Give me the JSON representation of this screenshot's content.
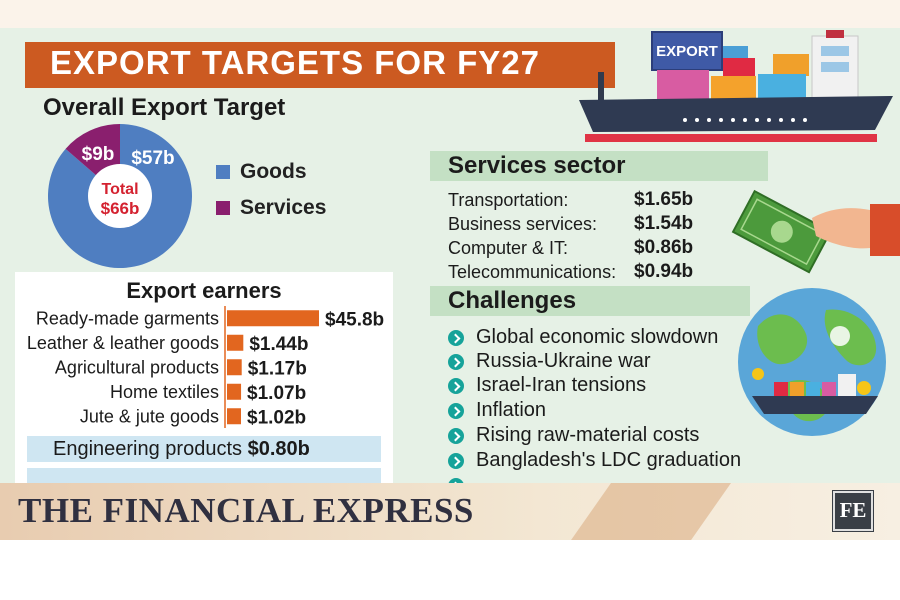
{
  "title": "EXPORT TARGETS FOR FY27",
  "ship_label": "EXPORT",
  "overall": {
    "heading": "Overall Export Target",
    "total_label": "Total",
    "total_value": "$66b",
    "goods_label": "$57b",
    "services_label": "$9b",
    "legend": [
      {
        "label": "Goods",
        "color": "#4f7ec1"
      },
      {
        "label": "Services",
        "color": "#8a1f6e"
      }
    ]
  },
  "services_sector": {
    "heading": "Services sector",
    "items": [
      {
        "name": "Transportation:",
        "value": "$1.65b"
      },
      {
        "name": "Business services:",
        "value": "$1.54b"
      },
      {
        "name": "Computer & IT:",
        "value": "$0.86b"
      },
      {
        "name": "Telecommunications:",
        "value": "$0.94b"
      }
    ]
  },
  "challenges": {
    "heading": "Challenges",
    "items": [
      "Global economic slowdown",
      "Russia-Ukraine war",
      "Israel-Iran tensions",
      "Inflation",
      "Rising raw-material costs",
      "Bangladesh's LDC graduation"
    ]
  },
  "earners": {
    "heading": "Export earners",
    "highlights": [
      {
        "name": "Engineering products",
        "value": "$0.80b"
      }
    ]
  },
  "chart_data": [
    {
      "type": "pie",
      "categories": [
        "Goods",
        "Services"
      ],
      "values": [
        57,
        9
      ],
      "labels": [
        "$57b",
        "$9b"
      ],
      "title": "Overall Export Target",
      "total": "$66b",
      "colors": [
        "#4f7ec1",
        "#8a1f6e"
      ],
      "legend": "right"
    },
    {
      "type": "bar",
      "orientation": "horizontal",
      "title": "Export earners",
      "categories": [
        "Ready-made garments",
        "Leather & leather goods",
        "Agricultural products",
        "Home textiles",
        "Jute & jute goods"
      ],
      "values": [
        45.8,
        1.44,
        1.17,
        1.07,
        1.02
      ],
      "labels": [
        "$45.8b",
        "$1.44b",
        "$1.17b",
        "$1.07b",
        "$1.02b"
      ],
      "color": "#e2661f"
    }
  ],
  "footer": {
    "brand": "THE FINANCIAL EXPRESS",
    "logo": "FE"
  },
  "colors": {
    "banner": "#cc5a21",
    "background": "#e6f1e6",
    "section_band": "#c4e0c4",
    "bullet": "#16a39a",
    "highlight": "#cfe6f2"
  },
  "icons": [
    "cargo-ship-icon",
    "money-hand-icon",
    "globe-icon",
    "check-bullet-icon"
  ]
}
